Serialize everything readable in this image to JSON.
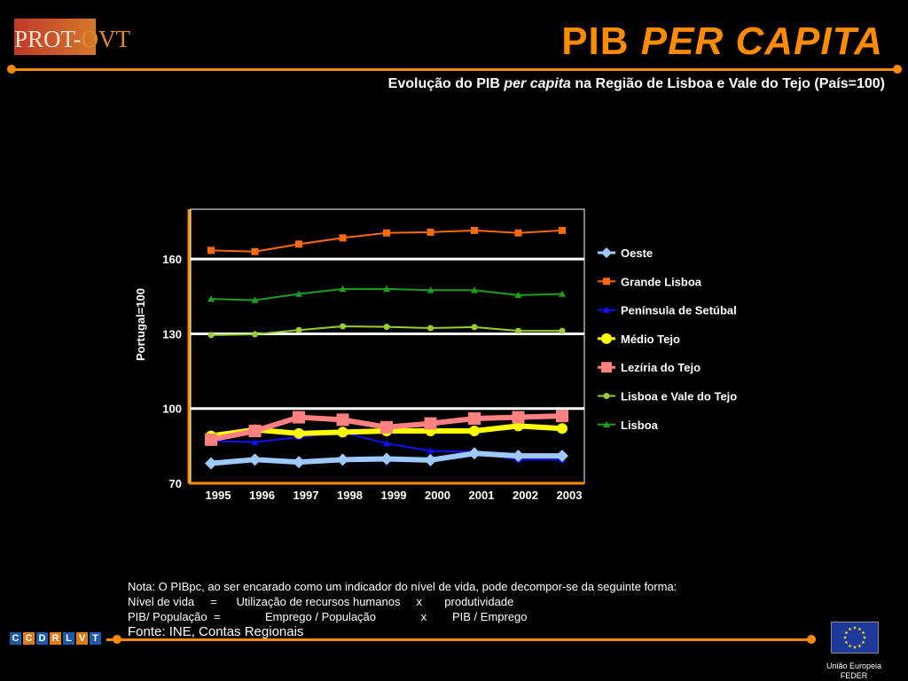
{
  "header": {
    "logo_part1": "PROT-",
    "logo_part2": "OVT",
    "title_plain": "PIB ",
    "title_italic": "PER CAPITA",
    "subtitle_pre": "Evolução do PIB ",
    "subtitle_italic": "per capita",
    "subtitle_post": " na Região de Lisboa e Vale do Tejo (País=100)"
  },
  "colors": {
    "accent": "#ff8c00",
    "background": "#000000"
  },
  "chart_data": {
    "type": "line",
    "title": "",
    "xlabel": "",
    "ylabel": "Portugal=100",
    "ylim": [
      70,
      180
    ],
    "yticks": [
      70,
      100,
      130,
      160
    ],
    "grid": "horizontal",
    "legend_position": "right",
    "categories": [
      "1995",
      "1996",
      "1997",
      "1998",
      "1999",
      "2000",
      "2001",
      "2002",
      "2003"
    ],
    "series": [
      {
        "name": "Oeste",
        "color": "#9ec9ff",
        "marker": "diamond",
        "values": [
          78,
          79.5,
          78.5,
          79.5,
          79.8,
          79.3,
          82,
          81,
          81
        ]
      },
      {
        "name": "Grande Lisboa",
        "color": "#ff6a10",
        "marker": "square",
        "values": [
          163.5,
          163,
          166,
          168.5,
          170.5,
          170.8,
          171.5,
          170.5,
          171.5
        ]
      },
      {
        "name": "Península de Setúbal",
        "color": "#1010ff",
        "marker": "triangle",
        "values": [
          87,
          86.5,
          88.5,
          90.5,
          86,
          83,
          82.5,
          79.5,
          79.5
        ]
      },
      {
        "name": "Médio Tejo",
        "color": "#ffff00",
        "marker": "circle",
        "values": [
          89,
          91.5,
          90,
          90.5,
          91,
          91,
          91,
          93,
          92
        ]
      },
      {
        "name": "Lezíria do Tejo",
        "color": "#ff8080",
        "marker": "square",
        "values": [
          87.5,
          91,
          96.5,
          95.5,
          92.5,
          94,
          96,
          96.5,
          97
        ]
      },
      {
        "name": "Lisboa e Vale do Tejo",
        "color": "#9acd32",
        "marker": "circle",
        "values": [
          129.5,
          129.8,
          131.5,
          133,
          132.8,
          132.3,
          132.7,
          131.2,
          131.2
        ]
      },
      {
        "name": "Lisboa",
        "color": "#1e9e1e",
        "marker": "triangle",
        "values": [
          144,
          143.5,
          146,
          148,
          148,
          147.5,
          147.5,
          145.5,
          146
        ]
      }
    ]
  },
  "notes": {
    "line1": "Nota: O PIBpc, ao ser encarado como um indicador do nível de vida, pode decompor-se da seguinte forma:",
    "line2": "Nível de vida     =      Utilização de recursos humanos     x       produtividade",
    "line3": "PIB/ População  =              Emprego / População              x        PIB / Emprego",
    "source": "Fonte: INE, Contas Regionais"
  },
  "footer": {
    "cc_letters": [
      "C",
      "C",
      "D",
      "R",
      "L",
      "V",
      "T"
    ],
    "eu_label_1": "União Europeia",
    "eu_label_2": "FEDER"
  }
}
